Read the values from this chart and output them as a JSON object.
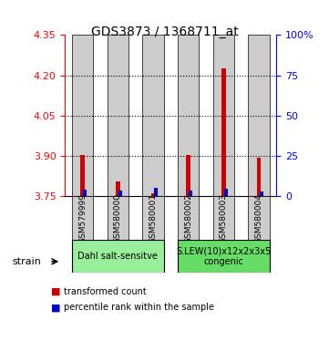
{
  "title": "GDS3873 / 1368711_at",
  "samples": [
    "GSM579999",
    "GSM580000",
    "GSM580001",
    "GSM580002",
    "GSM580003",
    "GSM580004"
  ],
  "baseline": 3.75,
  "red_tops": [
    3.903,
    3.805,
    3.762,
    3.903,
    4.225,
    3.892
  ],
  "blue_tops": [
    3.775,
    3.772,
    3.782,
    3.772,
    3.778,
    3.768
  ],
  "ylim_left": [
    3.75,
    4.35
  ],
  "ylim_right": [
    0,
    100
  ],
  "left_ticks": [
    3.75,
    3.9,
    4.05,
    4.2,
    4.35
  ],
  "right_ticks": [
    0,
    25,
    50,
    75,
    100
  ],
  "right_tick_labels": [
    "0",
    "25",
    "50",
    "75",
    "100%"
  ],
  "red_color": "#cc0000",
  "blue_color": "#0000cc",
  "bar_bg_color": "#cccccc",
  "group1_color": "#99ee99",
  "group2_color": "#66dd66",
  "group1_label": "Dahl salt-sensitve",
  "group2_label": "S.LEW(10)x12x2x3x5\ncongenic",
  "group1_indices": [
    0,
    1,
    2
  ],
  "group2_indices": [
    3,
    4,
    5
  ],
  "legend_red": "transformed count",
  "legend_blue": "percentile rank within the sample",
  "strain_label": "strain",
  "bar_width": 0.6
}
